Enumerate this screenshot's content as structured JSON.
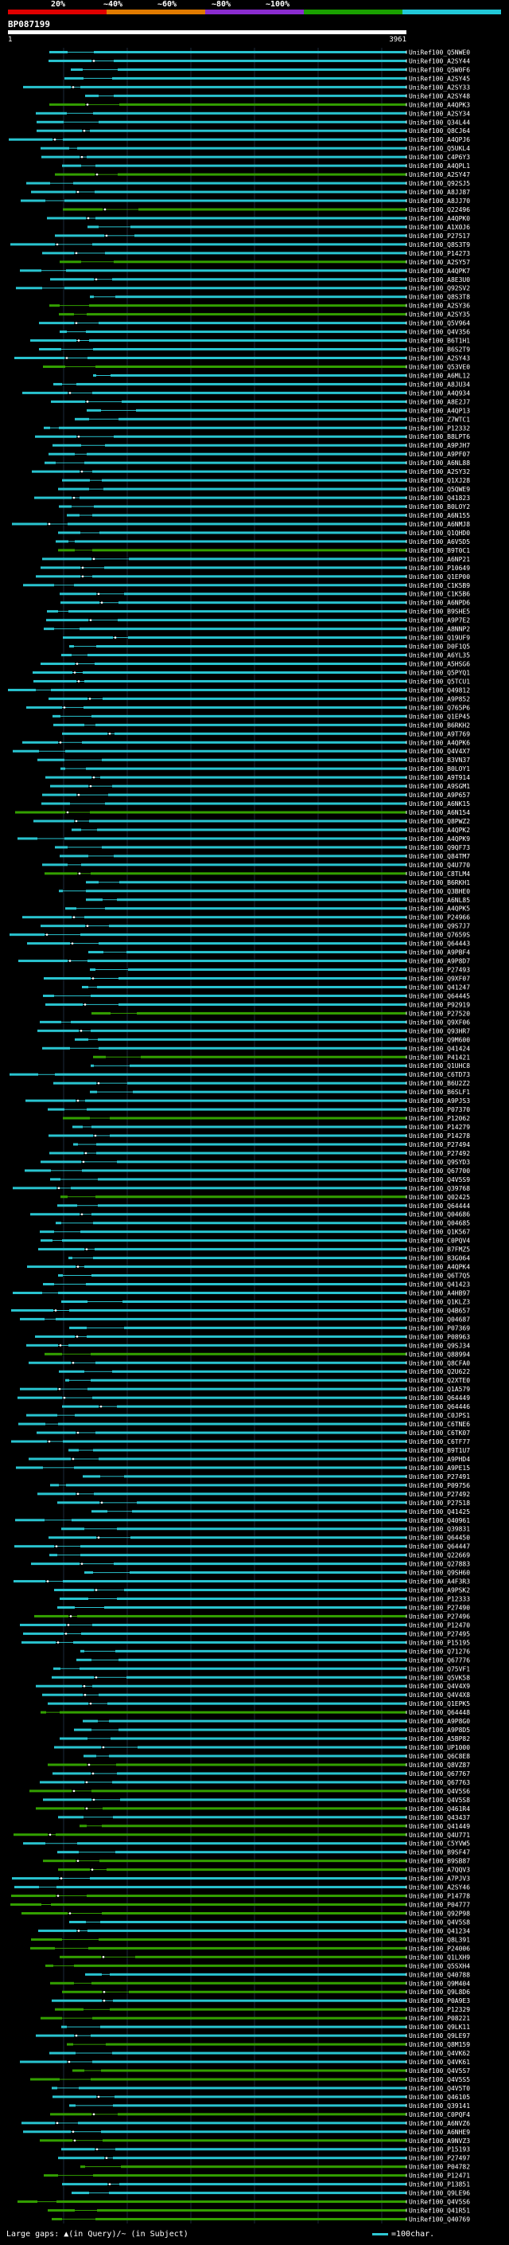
{
  "colorbar": {
    "labels": [
      "20%",
      "~40%",
      "~60%",
      "~80%",
      "~100%"
    ],
    "colors": [
      "#e00000",
      "#e07a00",
      "#8a2ccf",
      "#1aa000",
      "#22c8d8"
    ]
  },
  "chart_data": {
    "type": "alignment",
    "title": "BP087199",
    "query_length": 3961,
    "axis": {
      "start_label": "1",
      "end_label": "3961"
    },
    "identity_colors": {
      "60-80%": "#33a000",
      "80-100%": "#29c4d0"
    },
    "hits": [
      "Q5NWE0",
      "A2SY44",
      "Q5W0F6",
      "A2SY45",
      "A2SY33",
      "A2SY48",
      "A4QPK3",
      "A2SY34",
      "Q34L44",
      "Q8CJ64",
      "A4QPJ6",
      "Q5UKL4",
      "C4P6Y3",
      "A4QPL1",
      "A2SY47",
      "Q92SJ5",
      "A8JJ87",
      "A8JJ70",
      "Q22496",
      "A4QPK0",
      "A1X0J6",
      "P27517",
      "Q8S3T9",
      "P14273",
      "A2SY57",
      "A4QPK7",
      "A8E3U0",
      "Q92SV2",
      "Q8S3T8",
      "A2SY36",
      "A2SY35",
      "Q5V964",
      "Q4V356",
      "B6T1H1",
      "B6S2T9",
      "A2SY43",
      "Q53VE0",
      "A6ML12",
      "A8JU34",
      "A4Q934",
      "A8E2J7",
      "A4QP13",
      "Z7WTC1",
      "P12332",
      "B8LPT6",
      "A9PJH7",
      "A9PF07",
      "A6NL88",
      "A2SY32",
      "Q1XJ28",
      "Q5QWE9",
      "Q41823",
      "B0LOY2",
      "A6N155",
      "A6NMJ8",
      "Q1QHD0",
      "A6V5D5",
      "B9T0C1",
      "A6NP21",
      "P10649",
      "Q1EP00",
      "C1K5B9",
      "C1K5B6",
      "A6NPD6",
      "B9SHE5",
      "A9P7E2",
      "A8NNP2",
      "Q19UF9",
      "D0F1Q5",
      "A6YL35",
      "A5HSG6",
      "Q5PYQ1",
      "Q5TCU1",
      "Q49812",
      "A9P852",
      "Q765P6",
      "Q1EP45",
      "B6RKH2",
      "A9T769",
      "A4QPK6",
      "Q4V4X7",
      "B3VN37",
      "B0LOY1",
      "A9T914",
      "A9SGM1",
      "A9P657",
      "A6NK15",
      "A6N154",
      "Q8PWZ2",
      "A4QPK2",
      "A4QPK9",
      "Q9QF73",
      "Q84TM7",
      "Q4U770",
      "C8TLM4",
      "B6RKH1",
      "Q3BHE0",
      "A6NL85",
      "A4QPK5",
      "P24966",
      "Q9S7J7",
      "Q7659S",
      "Q64443",
      "A9PBF4",
      "A9P8D7",
      "P27493",
      "Q9XF07",
      "Q41247",
      "Q64445",
      "P92919",
      "P27520",
      "Q9XF06",
      "Q93HR7",
      "Q9M600",
      "Q41424",
      "P41421",
      "Q1UHC8",
      "C6TD73",
      "B6U2Z2",
      "B6SLF1",
      "A9PJS3",
      "P07370",
      "P12062",
      "P14279",
      "P14278",
      "P27494",
      "P27492",
      "Q9SYD3",
      "Q67700",
      "Q4V5S9",
      "Q39768",
      "Q02425",
      "Q64444",
      "Q04686",
      "Q04685",
      "Q1K567",
      "C0PQV4",
      "B7FMZ5",
      "B3G064",
      "A4QPK4",
      "Q6T7Q5",
      "Q41423",
      "A4HB97",
      "Q1KLZ3",
      "Q4B657",
      "Q04687",
      "P07369",
      "P08963",
      "Q9SJ34",
      "Q88994",
      "Q8CFA0",
      "Q2U622",
      "Q2XTE0",
      "Q1A579",
      "Q64449",
      "Q64446",
      "C0JPS1",
      "C6TNE6",
      "C6TK07",
      "C6TF77",
      "B9T1U7",
      "A9PHD4",
      "A9PE15",
      "P27491",
      "P09756",
      "P27492",
      "P27518",
      "Q41425",
      "Q40961",
      "Q39831",
      "Q64450",
      "Q64447",
      "Q22669",
      "Q27883",
      "Q9SH60",
      "A4F3R3",
      "A9PSK2",
      "P12333",
      "P27490",
      "P27496",
      "P12470",
      "P27495",
      "P15195",
      "Q71276",
      "Q67776",
      "Q75VF1",
      "Q5VK58",
      "Q4V4X9",
      "Q4V4X8",
      "Q1EPK5",
      "Q64448",
      "A9P8G0",
      "A9P8D5",
      "A5BP82",
      "UP1000",
      "Q6C8E8",
      "Q8VZ87",
      "Q67767",
      "Q67763",
      "Q4V5S6",
      "Q4V5S8",
      "Q461R4",
      "Q43437",
      "Q41449",
      "Q4U771",
      "C5YVW5",
      "B9SF47",
      "B9SB87",
      "A7QQV3",
      "A7PJV3",
      "A2SY46",
      "P14778",
      "P04777",
      "Q92P98",
      "Q4V5S8",
      "Q41234",
      "Q8L391",
      "P24006",
      "Q1LXH9",
      "Q5SXH4",
      "Q40788",
      "Q9M404",
      "Q9L8D6",
      "P0A9E3",
      "P12329",
      "P08221",
      "Q9LK11",
      "Q9LE97",
      "Q8M159",
      "Q4VK62",
      "Q4VK61",
      "Q4V5S7",
      "Q4V5S5",
      "Q4V5T0",
      "Q46105",
      "Q39141",
      "C0PQF4",
      "A6NVZ6",
      "A6NHE9",
      "A9NVZ3",
      "P15193",
      "P27497",
      "P04782",
      "P12471",
      "P13851",
      "Q9LE96",
      "Q4V5S6",
      "Q41R51",
      "Q40769"
    ]
  },
  "footer": {
    "large_gaps": "Large gaps: ▲(in Query)/~ (in Subject)",
    "legend": "=100char."
  }
}
